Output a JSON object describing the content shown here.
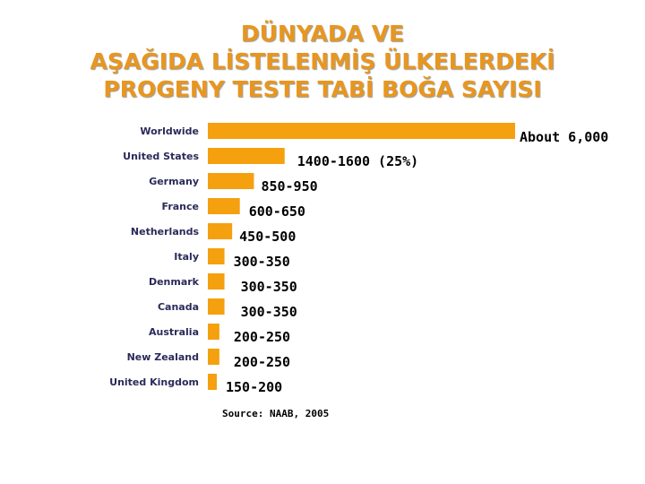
{
  "title": {
    "lines": [
      "DÜNYADA VE",
      "AŞAĞIDA LİSTELENMİŞ ÜLKELERDEKİ",
      "PROGENY TESTE TABİ BOĞA SAYISI"
    ]
  },
  "source": "Source: NAAB, 2005",
  "colors": {
    "bar": "#f5a00f",
    "title": "#e8961e"
  },
  "chart_data": {
    "type": "bar",
    "orientation": "horizontal",
    "categories": [
      "Worldwide",
      "United States",
      "Germany",
      "France",
      "Netherlands",
      "Italy",
      "Denmark",
      "Canada",
      "Australia",
      "New Zealand",
      "United Kingdom"
    ],
    "values": [
      6000,
      1500,
      900,
      625,
      475,
      325,
      325,
      325,
      225,
      225,
      175
    ],
    "value_labels": [
      "About 6,000",
      "1400-1600 (25%)",
      "850-950",
      "600-650",
      "450-500",
      "300-350",
      "300-350",
      "300-350",
      "200-250",
      "200-250",
      "150-200"
    ],
    "title": "DÜNYADA VE AŞAĞIDA LİSTELENMİŞ ÜLKELERDEKİ PROGENY TESTE TABİ BOĞA SAYISI",
    "xlabel": "",
    "ylabel": "",
    "xlim": [
      0,
      6000
    ],
    "grid": false,
    "legend": "none"
  }
}
